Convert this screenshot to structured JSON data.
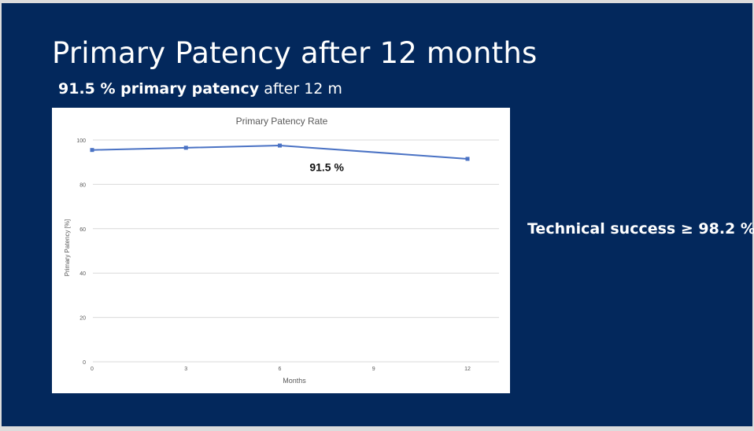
{
  "slide": {
    "title": "Primary Patency after 12 months",
    "subtitle_bold": "91.5 % primary patency",
    "subtitle_rest": " after 12 m",
    "side_note": "Technical success ≥ 98.2 %"
  },
  "colors": {
    "background": "#03285c",
    "series": "#4a72c4",
    "grid": "#d9d9d9",
    "axis_text": "#595959"
  },
  "chart_data": {
    "type": "line",
    "title": "Primary Patency Rate",
    "xlabel": "Months",
    "ylabel": "Primary Patency [%]",
    "x_ticks": [
      0,
      3,
      6,
      9,
      12
    ],
    "y_ticks": [
      0,
      20,
      40,
      60,
      80,
      100
    ],
    "xlim": [
      0,
      12
    ],
    "ylim": [
      0,
      100
    ],
    "grid": "horizontal",
    "legend": "none",
    "series": [
      {
        "x": [
          0,
          3,
          6,
          12
        ],
        "y": [
          95.5,
          96.5,
          97.5,
          91.5
        ]
      }
    ],
    "annotation": {
      "text": "91.5 %",
      "x": 7.5,
      "y": 86
    }
  }
}
